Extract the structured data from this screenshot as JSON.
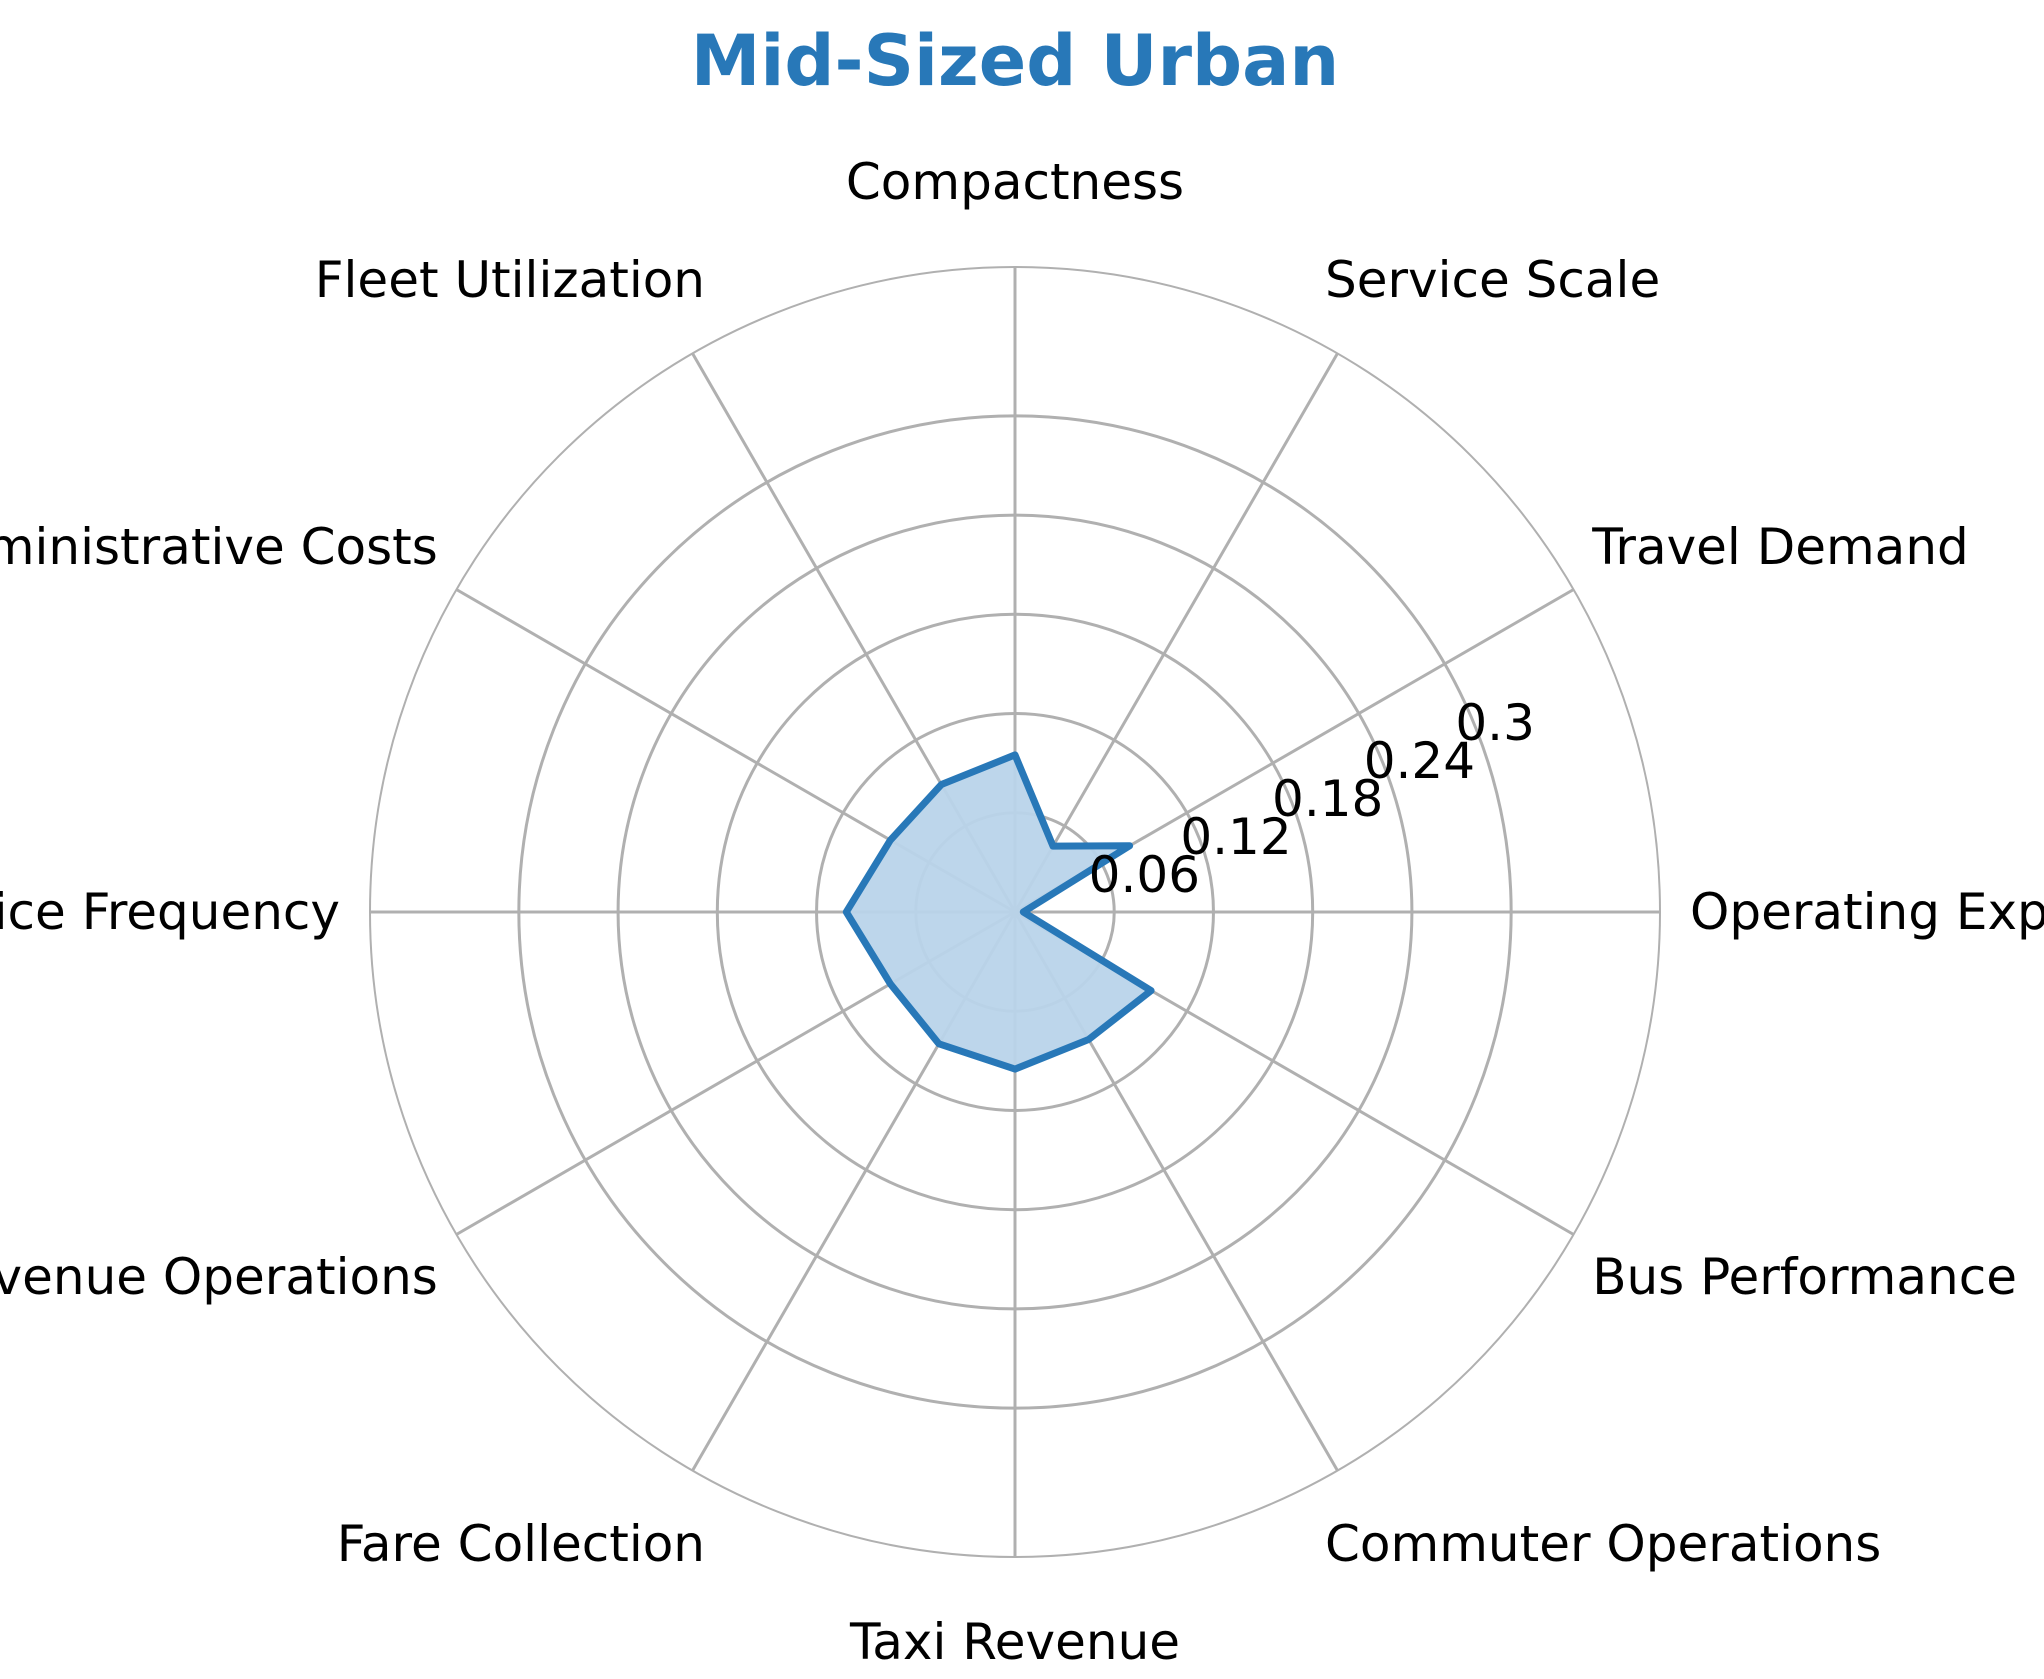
{
  "chart_data": {
    "type": "radar",
    "title": "Mid-Sized Urban",
    "categories": [
      "Operating Expenses",
      "Travel Demand",
      "Service Scale",
      "Compactness",
      "Fleet Utilization",
      "Administrative Costs",
      "Service Frequency",
      "Revenue Operations",
      "Fare Collection",
      "Taxi Revenue",
      "Commuter Operations",
      "Bus Performance"
    ],
    "series": [
      {
        "values": [
          0.005,
          0.08,
          0.046,
          0.095,
          0.089,
          0.087,
          0.102,
          0.087,
          0.092,
          0.095,
          0.089,
          0.095
        ]
      }
    ],
    "radial_ticks": [
      "0.06",
      "0.12",
      "0.18",
      "0.24",
      "0.3"
    ],
    "rlim": [
      0,
      0.39
    ],
    "grid": true,
    "colors": {
      "title": "#2878b8",
      "line": "#2878b8",
      "fill": "#b9d4ea",
      "grid": "#b0b0b0"
    }
  }
}
